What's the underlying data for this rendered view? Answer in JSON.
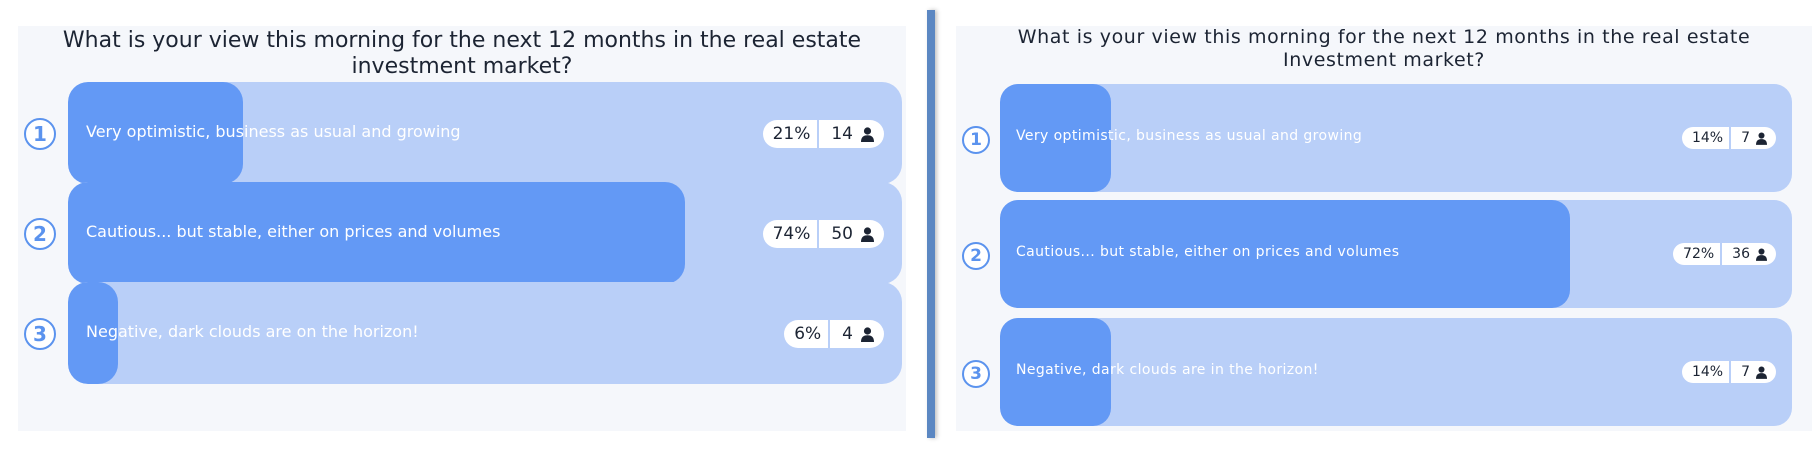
{
  "colors": {
    "panel_background": "#f5f7fb",
    "bar_track": "#b9cff8",
    "bar_fill": "#6399f5",
    "accent": "#5b93ee",
    "divider": "#5b87c2"
  },
  "polls": [
    {
      "question": "What is your view this morning for the next 12 months in the real estate investment market?",
      "answers": [
        {
          "number": "1",
          "label": "Very optimistic, business as usual and growing",
          "percent_label": "21%",
          "percent": 21,
          "count": "14",
          "icon": "person-icon"
        },
        {
          "number": "2",
          "label": "Cautious... but stable, either on prices and volumes",
          "percent_label": "74%",
          "percent": 74,
          "count": "50",
          "icon": "person-icon"
        },
        {
          "number": "3",
          "label": "Negative, dark clouds are on the horizon!",
          "percent_label": "6%",
          "percent": 6,
          "count": "4",
          "icon": "person-icon"
        }
      ]
    },
    {
      "question": "What is your view this morning for the next 12 months in the real estate Investment market?",
      "answers": [
        {
          "number": "1",
          "label": "Very optimistic, business as usual and growing",
          "percent_label": "14%",
          "percent": 14,
          "count": "7",
          "icon": "person-icon"
        },
        {
          "number": "2",
          "label": "Cautious... but stable, either on prices and volumes",
          "percent_label": "72%",
          "percent": 72,
          "count": "36",
          "icon": "person-icon"
        },
        {
          "number": "3",
          "label": "Negative, dark clouds are in the horizon!",
          "percent_label": "14%",
          "percent": 14,
          "count": "7",
          "icon": "person-icon"
        }
      ]
    }
  ]
}
